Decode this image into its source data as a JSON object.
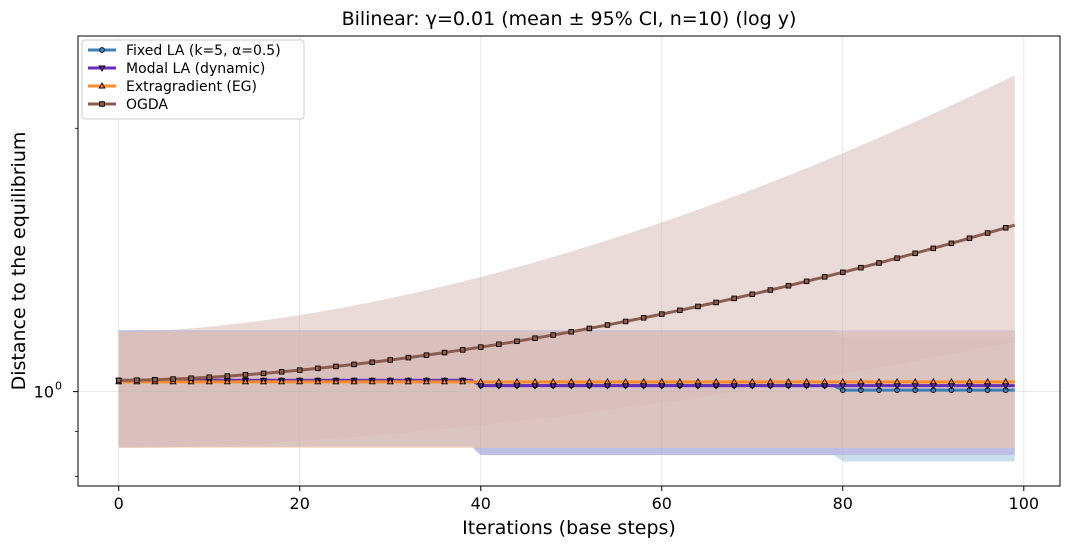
{
  "chart_data": {
    "type": "line",
    "title": "Bilinear: γ=0.01  (mean ± 95% CI, n=10) (log y)",
    "xlabel": "Iterations (base steps)",
    "ylabel": "Distance to the equilibrium",
    "xlim": [
      -4.5,
      104
    ],
    "x_ticks": [
      0,
      20,
      40,
      60,
      80,
      100
    ],
    "y_scale": "log",
    "ylim": [
      0.78,
      2.55
    ],
    "y_ticks": [
      {
        "value": 1.0,
        "label_base": "10",
        "label_exp": "0"
      }
    ],
    "grid": true,
    "legend_position": "top-left",
    "series": [
      {
        "name": "Fixed LA (k=5, α=0.5)",
        "color": "#3d7fb8",
        "marker": "circle",
        "marker_every": 2,
        "x": [
          0,
          39,
          40,
          79,
          80,
          99
        ],
        "y": [
          1.03,
          1.03,
          1.016,
          1.016,
          1.004,
          1.004
        ],
        "ci_lower": [
          0.865,
          0.865,
          0.846,
          0.846,
          0.832,
          0.832
        ],
        "ci_upper": [
          1.175,
          1.175,
          1.175,
          1.175,
          1.155,
          1.155
        ],
        "band_color": "#9ec3e0"
      },
      {
        "name": "Modal LA (dynamic)",
        "color": "#6a2bb8",
        "marker": "triangle-down",
        "marker_every": 2,
        "x": [
          0,
          39,
          40,
          99
        ],
        "y": [
          1.03,
          1.03,
          1.016,
          1.016
        ],
        "ci_lower": [
          0.865,
          0.865,
          0.846,
          0.846
        ],
        "ci_upper": [
          1.175,
          1.175,
          1.175,
          1.175
        ],
        "band_color": "#b3a6df"
      },
      {
        "name": "Extragradient (EG)",
        "color": "#ff8c2a",
        "marker": "triangle-up",
        "marker_every": 2,
        "x": [
          0,
          99
        ],
        "y": [
          1.026,
          1.026
        ],
        "ci_lower": [
          0.862,
          0.862
        ],
        "ci_upper": [
          1.17,
          1.17
        ],
        "band_color": "#f5c9a3"
      },
      {
        "name": "OGDA",
        "color": "#8c5d4f",
        "marker": "square",
        "marker_every": 2,
        "y_start": 1.03,
        "y_end": 1.55,
        "ci_lower_start": 0.862,
        "ci_lower_end": 1.14,
        "ci_upper_start": 1.17,
        "ci_upper_end": 2.3,
        "band_color": "#d9bdb9"
      }
    ]
  }
}
